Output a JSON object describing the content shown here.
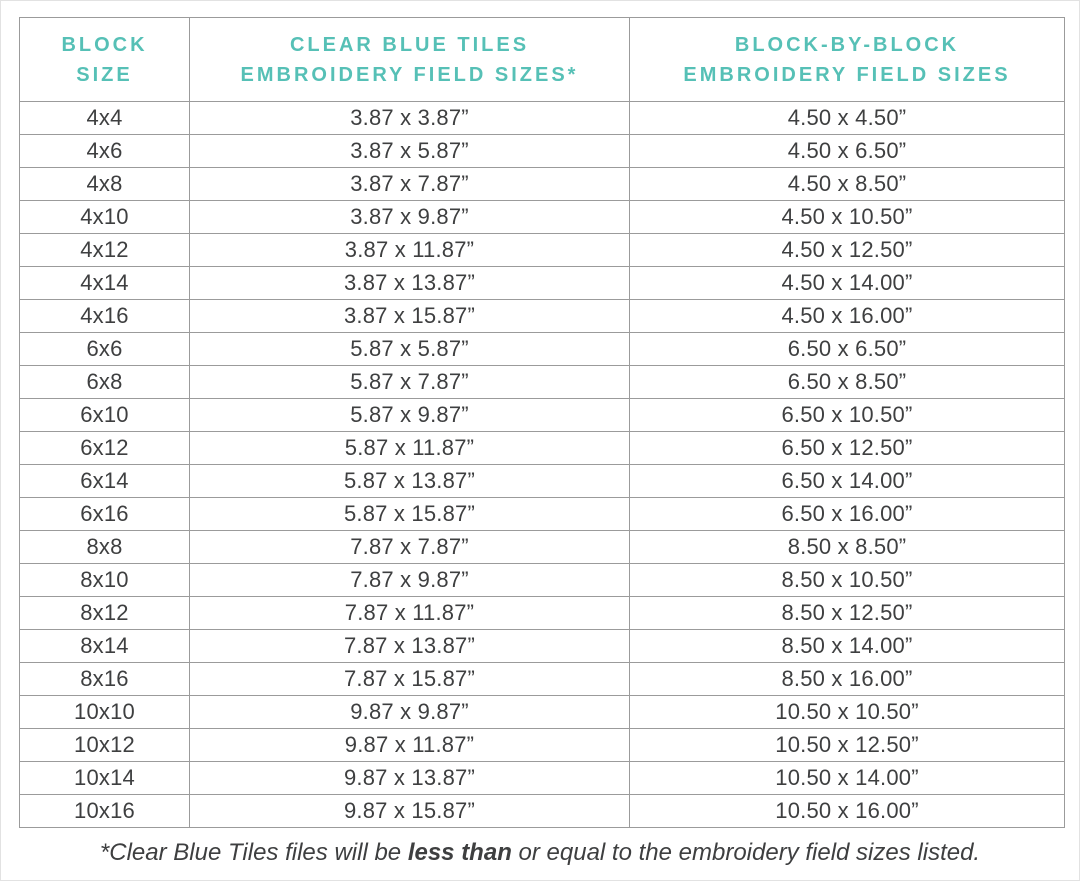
{
  "colors": {
    "accent": "#56c0b6",
    "text": "#3e3f40",
    "grid": "#9b9b9b",
    "page_edge": "#e2e2e2"
  },
  "table": {
    "headers": [
      "BLOCK\nSIZE",
      "CLEAR BLUE TILES\nEMBROIDERY FIELD SIZES*",
      "BLOCK-BY-BLOCK\nEMBROIDERY FIELD SIZES"
    ],
    "rows": [
      [
        "4x4",
        "3.87 x 3.87”",
        "4.50 x 4.50”"
      ],
      [
        "4x6",
        "3.87 x 5.87”",
        "4.50 x 6.50”"
      ],
      [
        "4x8",
        "3.87 x 7.87”",
        "4.50 x 8.50”"
      ],
      [
        "4x10",
        "3.87 x 9.87”",
        "4.50 x 10.50”"
      ],
      [
        "4x12",
        "3.87 x 11.87”",
        "4.50 x 12.50”"
      ],
      [
        "4x14",
        "3.87 x 13.87”",
        "4.50 x 14.00”"
      ],
      [
        "4x16",
        "3.87 x 15.87”",
        "4.50 x 16.00”"
      ],
      [
        "6x6",
        "5.87 x 5.87”",
        "6.50 x 6.50”"
      ],
      [
        "6x8",
        "5.87 x 7.87”",
        "6.50 x 8.50”"
      ],
      [
        "6x10",
        "5.87 x 9.87”",
        "6.50 x 10.50”"
      ],
      [
        "6x12",
        "5.87 x 11.87”",
        "6.50 x 12.50”"
      ],
      [
        "6x14",
        "5.87 x 13.87”",
        "6.50 x 14.00”"
      ],
      [
        "6x16",
        "5.87 x 15.87”",
        "6.50 x 16.00”"
      ],
      [
        "8x8",
        "7.87 x 7.87”",
        "8.50 x 8.50”"
      ],
      [
        "8x10",
        "7.87 x 9.87”",
        "8.50 x 10.50”"
      ],
      [
        "8x12",
        "7.87 x 11.87”",
        "8.50 x 12.50”"
      ],
      [
        "8x14",
        "7.87 x 13.87”",
        "8.50 x 14.00”"
      ],
      [
        "8x16",
        "7.87 x 15.87”",
        "8.50 x 16.00”"
      ],
      [
        "10x10",
        "9.87 x 9.87”",
        "10.50 x 10.50”"
      ],
      [
        "10x12",
        "9.87 x 11.87”",
        "10.50 x 12.50”"
      ],
      [
        "10x14",
        "9.87 x 13.87”",
        "10.50 x 14.00”"
      ],
      [
        "10x16",
        "9.87 x 15.87”",
        "10.50 x 16.00”"
      ]
    ]
  },
  "footnote": {
    "prefix": "*Clear Blue Tiles files will be ",
    "bold": "less than",
    "suffix": " or equal to the embroidery field sizes listed."
  }
}
